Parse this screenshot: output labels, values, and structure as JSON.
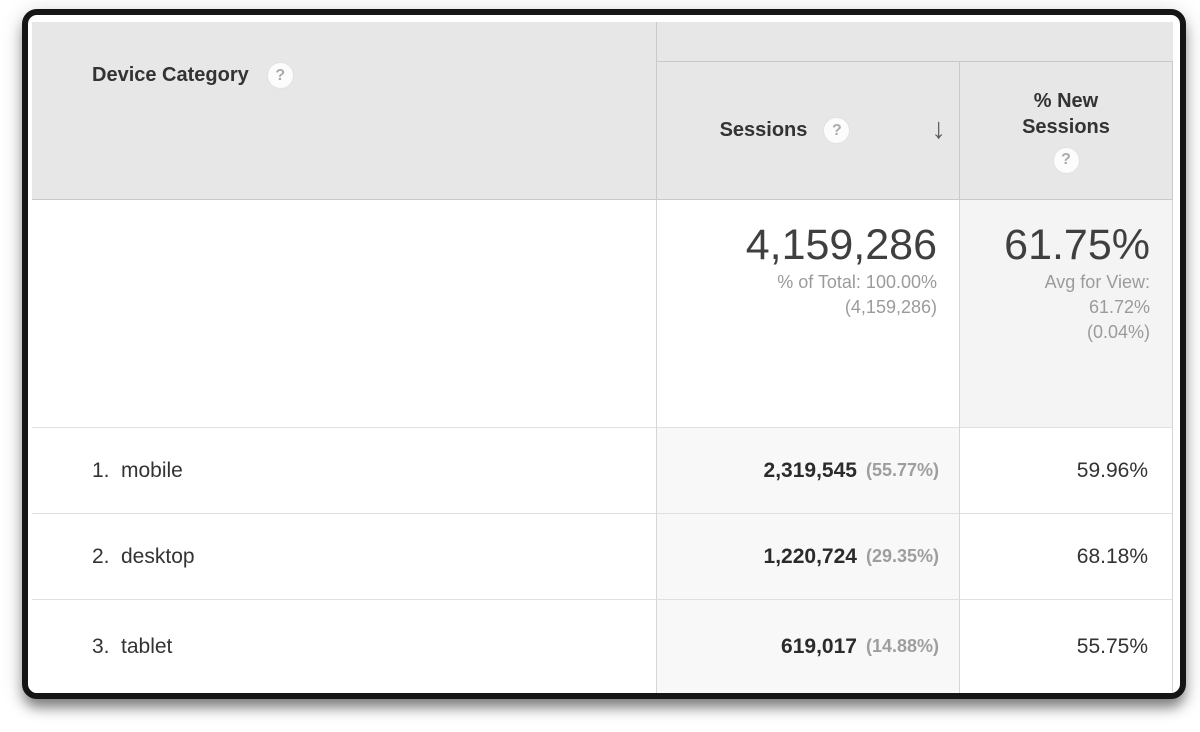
{
  "icons": {
    "help": "?",
    "sort_descending": "↓"
  },
  "colors": {
    "header_bg": "#e7e7e7",
    "sorted_column_bg": "#f8f8f8",
    "summary_secondary_bg": "#f4f4f4",
    "text_primary": "#333333",
    "text_secondary": "#9b9b9b",
    "frame_border": "#151515"
  },
  "table": {
    "dimension_header": "Device Category",
    "metric_headers": {
      "sessions": "Sessions",
      "new_sessions_lines": [
        "% New",
        "Sessions"
      ]
    },
    "sort": {
      "column": "Sessions",
      "direction": "descending"
    },
    "summary": {
      "sessions_total": "4,159,286",
      "sessions_sub1": "% of Total: 100.00%",
      "sessions_sub2": "(4,159,286)",
      "new_sessions_avg": "61.75%",
      "new_sessions_sub1": "Avg for View:",
      "new_sessions_sub2": "61.72%",
      "new_sessions_sub3": "(0.04%)"
    },
    "rows": [
      {
        "index": "1.",
        "dimension": "mobile",
        "sessions": "2,319,545",
        "sessions_pct": "(55.77%)",
        "new_sessions": "59.96%"
      },
      {
        "index": "2.",
        "dimension": "desktop",
        "sessions": "1,220,724",
        "sessions_pct": "(29.35%)",
        "new_sessions": "68.18%"
      },
      {
        "index": "3.",
        "dimension": "tablet",
        "sessions": "619,017",
        "sessions_pct": "(14.88%)",
        "new_sessions": "55.75%"
      }
    ]
  }
}
